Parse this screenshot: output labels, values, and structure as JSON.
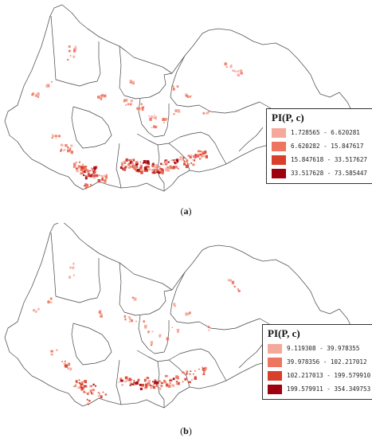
{
  "panels": [
    {
      "caption": "a",
      "legend": {
        "title": "PI(P, c)",
        "classes": [
          {
            "range": "1.728565 - 6.620281",
            "color": "#f4a99b"
          },
          {
            "range": "6.620282 - 15.847617",
            "color": "#ee7560"
          },
          {
            "range": "15.847618 - 33.517627",
            "color": "#d8402c"
          },
          {
            "range": "33.517628 - 73.585447",
            "color": "#9e0010"
          }
        ]
      }
    },
    {
      "caption": "b",
      "legend": {
        "title": "PI(P, c)",
        "classes": [
          {
            "range": "9.119308 - 39.978355",
            "color": "#f4a99b"
          },
          {
            "range": "39.978356 - 102.217012",
            "color": "#ee7560"
          },
          {
            "range": "102.217013 - 199.579910",
            "color": "#d8402c"
          },
          {
            "range": "199.579911 - 354.349753",
            "color": "#9e0010"
          }
        ]
      }
    }
  ]
}
